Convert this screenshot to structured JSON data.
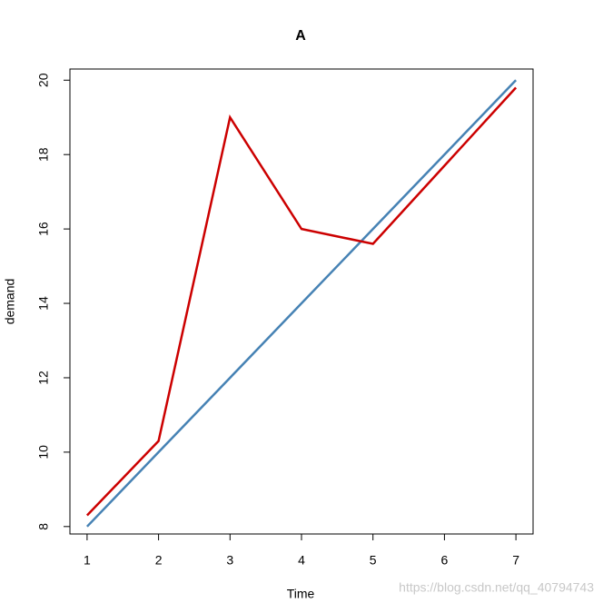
{
  "chart_data": {
    "type": "line",
    "title": "A",
    "x_label": "Time",
    "y_label": "demand",
    "x": [
      1,
      2,
      3,
      4,
      5,
      6,
      7
    ],
    "series": [
      {
        "color": "#4682b4",
        "values": [
          8,
          10,
          12,
          14,
          16,
          18,
          20
        ]
      },
      {
        "color": "#cc0000",
        "values": [
          8.3,
          10.3,
          19.0,
          16.0,
          15.6,
          17.7,
          19.8
        ]
      }
    ],
    "xlim": [
      0.76,
      7.24
    ],
    "xticks": [
      1,
      2,
      3,
      4,
      5,
      6,
      7
    ],
    "ylim": [
      7.8,
      20.3
    ],
    "yticks": [
      8,
      10,
      12,
      14,
      16,
      18,
      20
    ],
    "grid": false
  },
  "watermark": "https://blog.csdn.net/qq_40794743"
}
